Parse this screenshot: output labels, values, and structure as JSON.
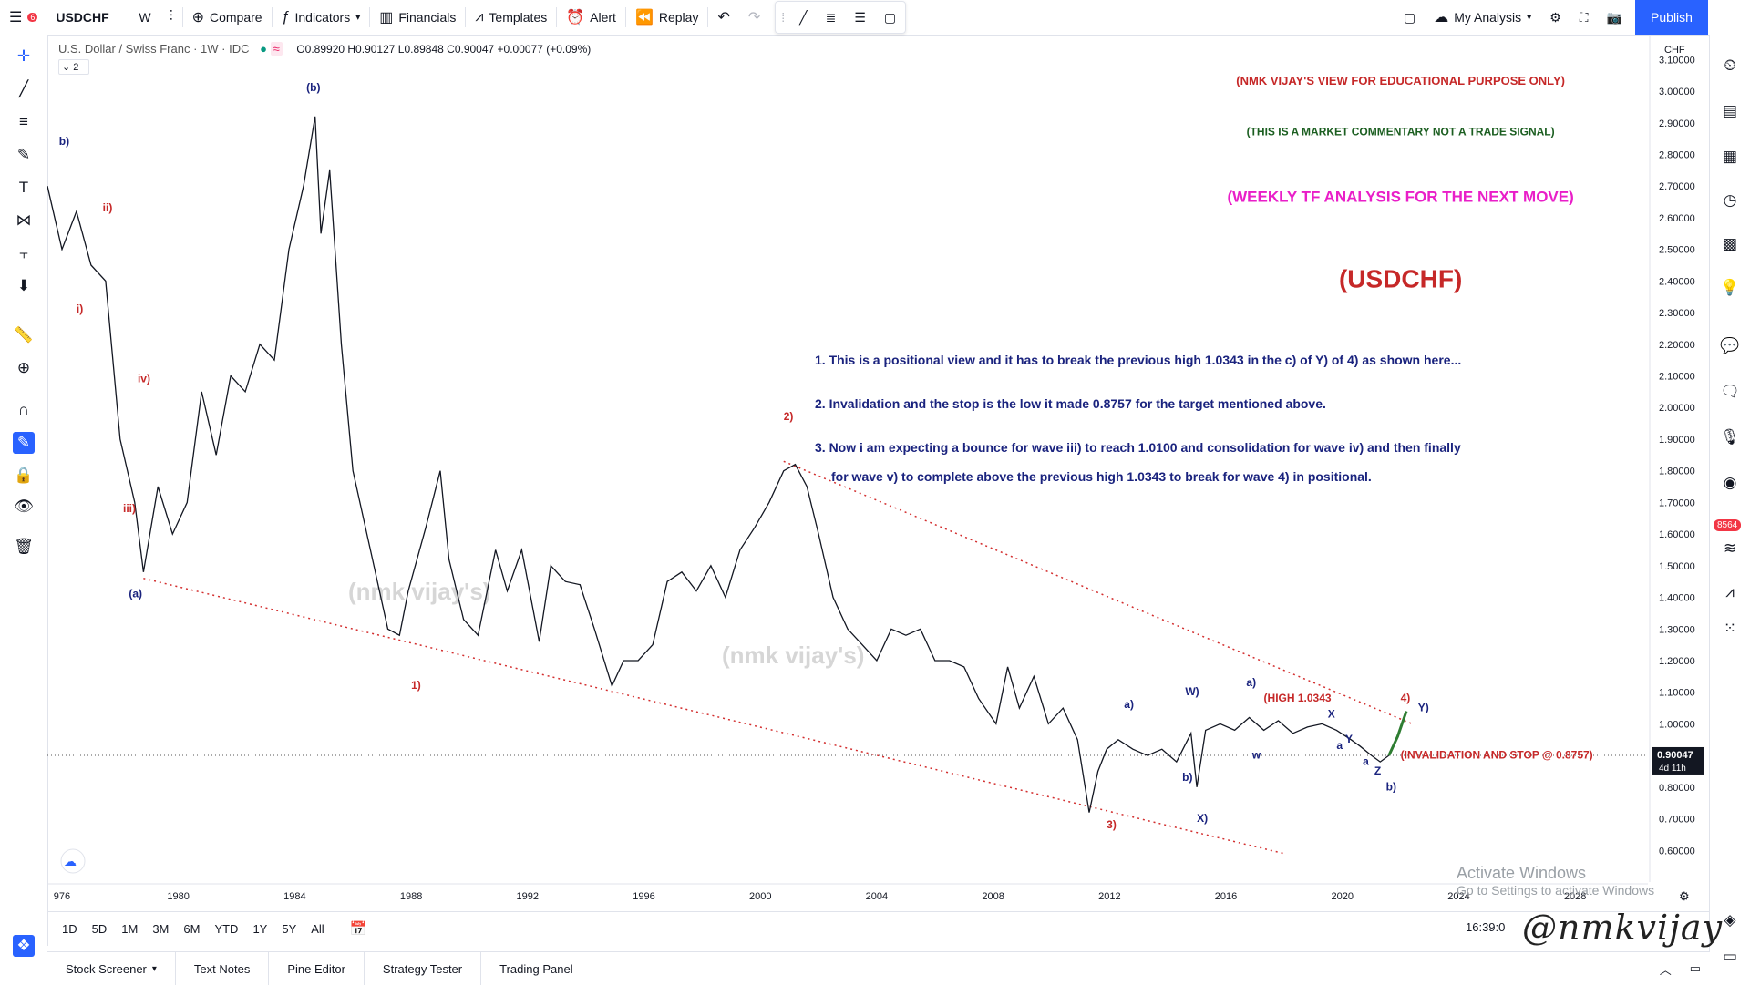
{
  "toolbar": {
    "symbol": "USDCHF",
    "notif_count": "6",
    "interval": "W",
    "compare": "Compare",
    "indicators": "Indicators",
    "financials": "Financials",
    "templates": "Templates",
    "alert": "Alert",
    "replay": "Replay",
    "layout": "My Analysis",
    "publish": "Publish"
  },
  "legend": {
    "title": "U.S. Dollar / Swiss Franc · 1W · IDC",
    "ohlc": "O0.89920 H0.90127 L0.89848 C0.90047 +0.00077 (+0.09%)",
    "collapse": "2"
  },
  "price_scale": {
    "currency": "CHF",
    "current_price": "0.90047",
    "current_countdown": "4d 11h"
  },
  "right_badge": "8564",
  "timeframes": [
    "1D",
    "5D",
    "1M",
    "3M",
    "6M",
    "YTD",
    "1Y",
    "5Y",
    "All"
  ],
  "clock": "16:39:0",
  "panels": [
    "Stock Screener",
    "Text Notes",
    "Pine Editor",
    "Strategy Tester",
    "Trading Panel"
  ],
  "windows_watermark": {
    "line1": "Activate Windows",
    "line2": "Go to Settings to activate Windows"
  },
  "signature": "@nmkvijay",
  "colors": {
    "price": "#131722",
    "accent": "#2962ff",
    "red_label": "#c62828",
    "blue_label": "#1a237e",
    "green_label": "#1b5e20",
    "magenta": "#e91ec8",
    "trendline": "#d32f2f"
  },
  "chart_data": {
    "type": "line",
    "title": "U.S. Dollar / Swiss Franc · 1W · IDC",
    "ylim": [
      0.5,
      3.15
    ],
    "xlim": [
      1975.5,
      2030.5
    ],
    "y_ticks": [
      "3.10000",
      "3.00000",
      "2.90000",
      "2.80000",
      "2.70000",
      "2.60000",
      "2.50000",
      "2.40000",
      "2.30000",
      "2.20000",
      "2.10000",
      "2.00000",
      "1.90000",
      "1.80000",
      "1.70000",
      "1.60000",
      "1.50000",
      "1.40000",
      "1.30000",
      "1.20000",
      "1.10000",
      "1.00000",
      "0.90047",
      "0.80000",
      "0.70000",
      "0.60000"
    ],
    "x_ticks": [
      "976",
      "1980",
      "1984",
      "1988",
      "1992",
      "1996",
      "2000",
      "2004",
      "2008",
      "2012",
      "2016",
      "2020",
      "2024",
      "2028"
    ],
    "series": [
      {
        "x": [
          1975.5,
          1976.0,
          1976.5,
          1977.0,
          1977.5,
          1978.0,
          1978.5,
          1978.8,
          1979.3,
          1979.8,
          1980.3,
          1980.8,
          1981.3,
          1981.8,
          1982.3,
          1982.8,
          1983.3,
          1983.8,
          1984.3,
          1984.7,
          1984.9,
          1985.2,
          1985.6,
          1986.0,
          1986.6,
          1987.2,
          1987.6,
          1987.9,
          1988.5,
          1989.0,
          1989.3,
          1989.8,
          1990.3,
          1990.9,
          1991.3,
          1991.8,
          1992.4,
          1992.8,
          1993.3,
          1993.8,
          1994.3,
          1994.9,
          1995.3,
          1995.8,
          1996.3,
          1996.8,
          1997.3,
          1997.8,
          1998.3,
          1998.8,
          1999.3,
          1999.8,
          2000.3,
          2000.8,
          2001.2,
          2001.6,
          2002.0,
          2002.5,
          2003.0,
          2003.5,
          2004.0,
          2004.5,
          2005.0,
          2005.5,
          2006.0,
          2006.5,
          2007.0,
          2007.5,
          2008.1,
          2008.5,
          2008.9,
          2009.4,
          2009.9,
          2010.4,
          2010.9,
          2011.3,
          2011.6,
          2011.9,
          2012.3,
          2012.8,
          2013.3,
          2013.8,
          2014.3,
          2014.8,
          2015.0,
          2015.3,
          2015.8,
          2016.3,
          2016.8,
          2017.3,
          2017.8,
          2018.3,
          2018.8,
          2019.3,
          2019.8,
          2020.3,
          2020.6,
          2021.0,
          2021.3,
          2021.6
        ],
        "y": [
          2.7,
          2.5,
          2.62,
          2.45,
          2.4,
          1.9,
          1.7,
          1.48,
          1.75,
          1.6,
          1.7,
          2.05,
          1.85,
          2.1,
          2.05,
          2.2,
          2.15,
          2.5,
          2.7,
          2.92,
          2.55,
          2.75,
          2.2,
          1.8,
          1.55,
          1.3,
          1.28,
          1.42,
          1.62,
          1.8,
          1.52,
          1.33,
          1.28,
          1.55,
          1.42,
          1.55,
          1.26,
          1.5,
          1.45,
          1.44,
          1.3,
          1.12,
          1.2,
          1.2,
          1.25,
          1.45,
          1.48,
          1.42,
          1.5,
          1.4,
          1.55,
          1.62,
          1.7,
          1.8,
          1.82,
          1.75,
          1.6,
          1.4,
          1.3,
          1.25,
          1.2,
          1.3,
          1.28,
          1.3,
          1.2,
          1.2,
          1.18,
          1.08,
          1.0,
          1.18,
          1.05,
          1.15,
          1.0,
          1.05,
          0.95,
          0.72,
          0.85,
          0.92,
          0.95,
          0.92,
          0.9,
          0.92,
          0.88,
          0.97,
          0.8,
          0.98,
          1.0,
          0.98,
          1.02,
          0.98,
          1.01,
          0.97,
          0.99,
          1.0,
          0.98,
          0.95,
          0.93,
          0.9,
          0.88,
          0.9
        ]
      }
    ],
    "projection": {
      "x": [
        2021.6,
        2021.9,
        2022.2
      ],
      "y": [
        0.9,
        0.96,
        1.04
      ]
    },
    "trendlines": [
      {
        "x": [
          1978.8,
          2018.0
        ],
        "y": [
          1.46,
          0.59
        ]
      },
      {
        "x": [
          2000.8,
          2022.4
        ],
        "y": [
          1.83,
          1.0
        ]
      }
    ],
    "wave_labels": [
      {
        "text": "(b)",
        "x": 1984.4,
        "y": 3.0,
        "color": "blue"
      },
      {
        "text": "b)",
        "x": 1975.9,
        "y": 2.83,
        "color": "blue"
      },
      {
        "text": "ii)",
        "x": 1977.4,
        "y": 2.62,
        "color": "red"
      },
      {
        "text": "i)",
        "x": 1976.5,
        "y": 2.3,
        "color": "red"
      },
      {
        "text": "iv)",
        "x": 1978.6,
        "y": 2.08,
        "color": "red"
      },
      {
        "text": "iii)",
        "x": 1978.1,
        "y": 1.67,
        "color": "red"
      },
      {
        "text": "(a)",
        "x": 1978.3,
        "y": 1.4,
        "color": "blue"
      },
      {
        "text": "1)",
        "x": 1988.0,
        "y": 1.11,
        "color": "red"
      },
      {
        "text": "2)",
        "x": 2000.8,
        "y": 1.96,
        "color": "red"
      },
      {
        "text": "3)",
        "x": 2011.9,
        "y": 0.67,
        "color": "red"
      },
      {
        "text": "a)",
        "x": 2012.5,
        "y": 1.05,
        "color": "blue"
      },
      {
        "text": "W)",
        "x": 2014.6,
        "y": 1.09,
        "color": "blue"
      },
      {
        "text": "b)",
        "x": 2014.5,
        "y": 0.82,
        "color": "blue"
      },
      {
        "text": "X)",
        "x": 2015.0,
        "y": 0.69,
        "color": "blue"
      },
      {
        "text": "a)",
        "x": 2016.7,
        "y": 1.12,
        "color": "blue"
      },
      {
        "text": "w",
        "x": 2016.9,
        "y": 0.89,
        "color": "blue"
      },
      {
        "text": "X",
        "x": 2019.5,
        "y": 1.02,
        "color": "blue"
      },
      {
        "text": "a",
        "x": 2019.8,
        "y": 0.92,
        "color": "blue"
      },
      {
        "text": "Y",
        "x": 2020.1,
        "y": 0.94,
        "color": "blue"
      },
      {
        "text": "a",
        "x": 2020.7,
        "y": 0.87,
        "color": "blue"
      },
      {
        "text": "Z",
        "x": 2021.1,
        "y": 0.84,
        "color": "blue"
      },
      {
        "text": "b)",
        "x": 2021.5,
        "y": 0.79,
        "color": "blue"
      },
      {
        "text": "4)",
        "x": 2022.0,
        "y": 1.07,
        "color": "red"
      },
      {
        "text": "Y)",
        "x": 2022.6,
        "y": 1.04,
        "color": "blue"
      }
    ],
    "annotations": [
      {
        "text": "(HIGH 1.0343",
        "x": 2017.3,
        "y": 1.07,
        "color": "red"
      },
      {
        "text": "(INVALIDATION AND STOP @ 0.8757)",
        "x": 2022.0,
        "y": 0.89,
        "color": "red"
      },
      {
        "text": "(NMK VIJAY'S VIEW FOR EDUCATIONAL PURPOSE ONLY)",
        "x": 2022.0,
        "y": 3.02,
        "color": "red",
        "size": 13
      },
      {
        "text": "(THIS IS A MARKET COMMENTARY NOT A TRADE SIGNAL)",
        "x": 2022.0,
        "y": 2.86,
        "color": "green",
        "size": 12
      },
      {
        "text": "(WEEKLY TF ANALYSIS FOR THE NEXT MOVE)",
        "x": 2022.0,
        "y": 2.65,
        "color": "magenta",
        "size": 17
      },
      {
        "text": "(USDCHF)",
        "x": 2022.0,
        "y": 2.38,
        "color": "red",
        "size": 28
      }
    ],
    "notes": [
      {
        "text": "1. This is a positional view and it has to break the previous high 1.0343 in the c) of Y) of 4) as shown here..."
      },
      {
        "text": "2. Invalidation and the stop is the low it made 0.8757 for the target mentioned above."
      },
      {
        "text": "3. Now i am expecting a bounce for wave iii) to reach 1.0100 and consolidation for wave iv) and then finally"
      },
      {
        "text": "for wave v) to complete above the previous high 1.0343 to break for wave 4) in positional."
      }
    ],
    "watermarks": [
      "(nmk vijay's)",
      "(nmk vijay's)"
    ],
    "current_price": 0.90047,
    "grid": false,
    "legend": "top-left"
  }
}
